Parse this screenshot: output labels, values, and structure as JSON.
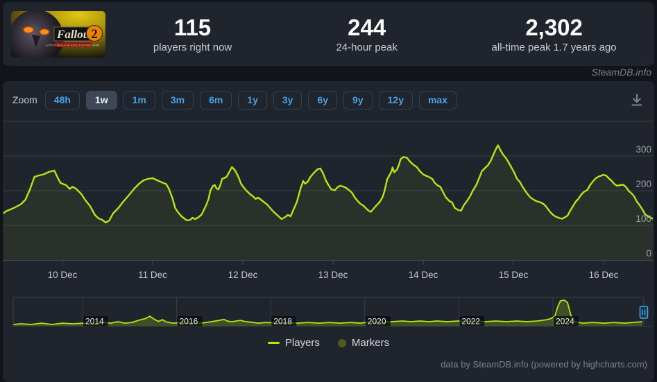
{
  "header": {
    "game_title": "Fallout 2",
    "stats": [
      {
        "value": "115",
        "label": "players right now"
      },
      {
        "value": "244",
        "label": "24-hour peak"
      },
      {
        "value": "2,302",
        "label": "all-time peak 1.7 years ago"
      }
    ]
  },
  "watermark": "SteamDB.info",
  "toolbar": {
    "zoom_label": "Zoom",
    "ranges": [
      "48h",
      "1w",
      "1m",
      "3m",
      "6m",
      "1y",
      "3y",
      "6y",
      "9y",
      "12y",
      "max"
    ],
    "selected": "1w",
    "download_icon": "download-chart-icon"
  },
  "legend": {
    "items": [
      {
        "label": "Players",
        "swatch": "line",
        "color": "#b2e816"
      },
      {
        "label": "Markers",
        "swatch": "circle",
        "color": "#4d5a26"
      }
    ]
  },
  "credits": "data by SteamDB.info (powered by highcharts.com)",
  "colors": {
    "accent_line": "#b2e816",
    "button_text": "#45a3e6",
    "page_background": "#121419",
    "card_background": "#20242c",
    "gridline": "#383e45",
    "navigator_handle": "#4da7e2"
  },
  "chart_data": {
    "type": "line",
    "title": "",
    "xlabel": "date",
    "ylabel": "players",
    "ylim": [
      0,
      400
    ],
    "grid": "horizontal",
    "legend_position": "bottom",
    "y_ticks": [
      300,
      200,
      100,
      0
    ],
    "x_ticks": {
      "labels": [
        "10 Dec",
        "11 Dec",
        "12 Dec",
        "13 Dec",
        "14 Dec",
        "15 Dec",
        "16 Dec"
      ],
      "days": [
        10,
        11,
        12,
        13,
        14,
        15,
        16
      ]
    },
    "series": [
      {
        "name": "Players",
        "color": "#b2e816",
        "x_unit": "day of December",
        "points": [
          [
            9.31,
            126
          ],
          [
            9.37,
            140
          ],
          [
            9.46,
            150
          ],
          [
            9.54,
            161
          ],
          [
            9.59,
            174
          ],
          [
            9.64,
            204
          ],
          [
            9.69,
            240
          ],
          [
            9.74,
            244
          ],
          [
            9.79,
            247
          ],
          [
            9.85,
            254
          ],
          [
            9.91,
            258
          ],
          [
            9.95,
            236
          ],
          [
            9.98,
            222
          ],
          [
            10.04,
            216
          ],
          [
            10.08,
            205
          ],
          [
            10.11,
            211
          ],
          [
            10.15,
            206
          ],
          [
            10.21,
            190
          ],
          [
            10.25,
            174
          ],
          [
            10.31,
            154
          ],
          [
            10.36,
            130
          ],
          [
            10.4,
            120
          ],
          [
            10.44,
            116
          ],
          [
            10.48,
            108
          ],
          [
            10.52,
            114
          ],
          [
            10.56,
            134
          ],
          [
            10.62,
            150
          ],
          [
            10.67,
            167
          ],
          [
            10.75,
            191
          ],
          [
            10.8,
            207
          ],
          [
            10.85,
            220
          ],
          [
            10.9,
            230
          ],
          [
            10.95,
            234
          ],
          [
            11.0,
            236
          ],
          [
            11.05,
            230
          ],
          [
            11.11,
            223
          ],
          [
            11.15,
            219
          ],
          [
            11.18,
            206
          ],
          [
            11.22,
            178
          ],
          [
            11.25,
            150
          ],
          [
            11.28,
            138
          ],
          [
            11.32,
            126
          ],
          [
            11.36,
            118
          ],
          [
            11.38,
            114
          ],
          [
            11.42,
            116
          ],
          [
            11.44,
            122
          ],
          [
            11.47,
            118
          ],
          [
            11.5,
            122
          ],
          [
            11.54,
            130
          ],
          [
            11.56,
            140
          ],
          [
            11.59,
            156
          ],
          [
            11.62,
            176
          ],
          [
            11.64,
            200
          ],
          [
            11.67,
            214
          ],
          [
            11.69,
            216
          ],
          [
            11.71,
            206
          ],
          [
            11.73,
            204
          ],
          [
            11.75,
            216
          ],
          [
            11.77,
            234
          ],
          [
            11.79,
            236
          ],
          [
            11.82,
            240
          ],
          [
            11.85,
            254
          ],
          [
            11.87,
            264
          ],
          [
            11.88,
            268
          ],
          [
            11.91,
            260
          ],
          [
            11.94,
            246
          ],
          [
            11.96,
            234
          ],
          [
            11.98,
            220
          ],
          [
            12.02,
            206
          ],
          [
            12.04,
            200
          ],
          [
            12.08,
            190
          ],
          [
            12.12,
            182
          ],
          [
            12.14,
            176
          ],
          [
            12.17,
            180
          ],
          [
            12.19,
            176
          ],
          [
            12.22,
            170
          ],
          [
            12.27,
            160
          ],
          [
            12.33,
            142
          ],
          [
            12.38,
            130
          ],
          [
            12.43,
            118
          ],
          [
            12.47,
            124
          ],
          [
            12.5,
            130
          ],
          [
            12.53,
            126
          ],
          [
            12.57,
            150
          ],
          [
            12.6,
            168
          ],
          [
            12.64,
            206
          ],
          [
            12.67,
            228
          ],
          [
            12.69,
            220
          ],
          [
            12.72,
            226
          ],
          [
            12.75,
            240
          ],
          [
            12.79,
            252
          ],
          [
            12.83,
            262
          ],
          [
            12.86,
            264
          ],
          [
            12.89,
            250
          ],
          [
            12.92,
            230
          ],
          [
            12.95,
            216
          ],
          [
            12.98,
            204
          ],
          [
            13.02,
            201
          ],
          [
            13.05,
            210
          ],
          [
            13.08,
            214
          ],
          [
            13.11,
            212
          ],
          [
            13.14,
            209
          ],
          [
            13.18,
            201
          ],
          [
            13.21,
            194
          ],
          [
            13.24,
            181
          ],
          [
            13.27,
            171
          ],
          [
            13.3,
            163
          ],
          [
            13.34,
            156
          ],
          [
            13.37,
            148
          ],
          [
            13.4,
            141
          ],
          [
            13.42,
            139
          ],
          [
            13.45,
            148
          ],
          [
            13.48,
            157
          ],
          [
            13.52,
            168
          ],
          [
            13.55,
            182
          ],
          [
            13.57,
            198
          ],
          [
            13.6,
            232
          ],
          [
            13.62,
            242
          ],
          [
            13.65,
            256
          ],
          [
            13.66,
            267
          ],
          [
            13.68,
            253
          ],
          [
            13.71,
            261
          ],
          [
            13.73,
            274
          ],
          [
            13.75,
            291
          ],
          [
            13.78,
            297
          ],
          [
            13.82,
            295
          ],
          [
            13.85,
            285
          ],
          [
            13.89,
            275
          ],
          [
            13.93,
            268
          ],
          [
            13.96,
            257
          ],
          [
            14.0,
            247
          ],
          [
            14.03,
            243
          ],
          [
            14.06,
            240
          ],
          [
            14.1,
            234
          ],
          [
            14.13,
            222
          ],
          [
            14.16,
            215
          ],
          [
            14.19,
            211
          ],
          [
            14.22,
            196
          ],
          [
            14.25,
            181
          ],
          [
            14.29,
            170
          ],
          [
            14.32,
            166
          ],
          [
            14.35,
            150
          ],
          [
            14.39,
            144
          ],
          [
            14.42,
            142
          ],
          [
            14.45,
            158
          ],
          [
            14.48,
            168
          ],
          [
            14.52,
            184
          ],
          [
            14.55,
            200
          ],
          [
            14.59,
            217
          ],
          [
            14.62,
            236
          ],
          [
            14.65,
            256
          ],
          [
            14.68,
            264
          ],
          [
            14.72,
            274
          ],
          [
            14.75,
            287
          ],
          [
            14.78,
            305
          ],
          [
            14.81,
            322
          ],
          [
            14.83,
            331
          ],
          [
            14.85,
            320
          ],
          [
            14.88,
            306
          ],
          [
            14.92,
            293
          ],
          [
            14.95,
            280
          ],
          [
            14.98,
            266
          ],
          [
            15.01,
            252
          ],
          [
            15.04,
            234
          ],
          [
            15.07,
            226
          ],
          [
            15.1,
            212
          ],
          [
            15.13,
            200
          ],
          [
            15.16,
            189
          ],
          [
            15.19,
            180
          ],
          [
            15.22,
            175
          ],
          [
            15.25,
            170
          ],
          [
            15.28,
            168
          ],
          [
            15.32,
            164
          ],
          [
            15.35,
            158
          ],
          [
            15.38,
            148
          ],
          [
            15.41,
            138
          ],
          [
            15.44,
            130
          ],
          [
            15.47,
            125
          ],
          [
            15.51,
            121
          ],
          [
            15.54,
            119
          ],
          [
            15.57,
            123
          ],
          [
            15.6,
            128
          ],
          [
            15.63,
            142
          ],
          [
            15.66,
            155
          ],
          [
            15.69,
            168
          ],
          [
            15.72,
            176
          ],
          [
            15.75,
            188
          ],
          [
            15.78,
            196
          ],
          [
            15.82,
            202
          ],
          [
            15.85,
            216
          ],
          [
            15.88,
            226
          ],
          [
            15.91,
            235
          ],
          [
            15.94,
            240
          ],
          [
            15.97,
            243
          ],
          [
            16.0,
            246
          ],
          [
            16.03,
            243
          ],
          [
            16.06,
            235
          ],
          [
            16.09,
            228
          ],
          [
            16.12,
            219
          ],
          [
            16.15,
            214
          ],
          [
            16.18,
            216
          ],
          [
            16.22,
            217
          ],
          [
            16.25,
            210
          ],
          [
            16.28,
            199
          ],
          [
            16.31,
            192
          ],
          [
            16.34,
            183
          ],
          [
            16.37,
            168
          ],
          [
            16.4,
            158
          ],
          [
            16.43,
            146
          ],
          [
            16.46,
            132
          ],
          [
            16.49,
            126
          ],
          [
            16.52,
            122
          ],
          [
            16.55,
            119
          ]
        ]
      }
    ],
    "navigator": {
      "x_ticks": [
        2014,
        2016,
        2018,
        2020,
        2022,
        2024
      ],
      "series_name": "Players (all time)",
      "x_unit": "year",
      "points": [
        [
          2012.53,
          180
        ],
        [
          2012.69,
          240
        ],
        [
          2012.91,
          180
        ],
        [
          2013.13,
          300
        ],
        [
          2013.35,
          180
        ],
        [
          2013.57,
          300
        ],
        [
          2013.79,
          240
        ],
        [
          2014.01,
          300
        ],
        [
          2014.23,
          180
        ],
        [
          2014.46,
          360
        ],
        [
          2014.6,
          300
        ],
        [
          2014.75,
          425
        ],
        [
          2014.9,
          300
        ],
        [
          2015.05,
          360
        ],
        [
          2015.19,
          545
        ],
        [
          2015.34,
          700
        ],
        [
          2015.43,
          900
        ],
        [
          2015.52,
          650
        ],
        [
          2015.61,
          450
        ],
        [
          2015.7,
          600
        ],
        [
          2015.78,
          400
        ],
        [
          2015.93,
          300
        ],
        [
          2016.11,
          360
        ],
        [
          2016.3,
          300
        ],
        [
          2016.52,
          300
        ],
        [
          2016.74,
          425
        ],
        [
          2016.85,
          500
        ],
        [
          2016.93,
          560
        ],
        [
          2017.01,
          620
        ],
        [
          2017.08,
          480
        ],
        [
          2017.17,
          420
        ],
        [
          2017.26,
          480
        ],
        [
          2017.36,
          540
        ],
        [
          2017.46,
          430
        ],
        [
          2017.58,
          380
        ],
        [
          2017.73,
          300
        ],
        [
          2017.92,
          360
        ],
        [
          2018.14,
          300
        ],
        [
          2018.36,
          360
        ],
        [
          2018.58,
          300
        ],
        [
          2018.8,
          360
        ],
        [
          2019.03,
          300
        ],
        [
          2019.25,
          360
        ],
        [
          2019.47,
          300
        ],
        [
          2019.69,
          360
        ],
        [
          2019.91,
          300
        ],
        [
          2020.13,
          425
        ],
        [
          2020.35,
          360
        ],
        [
          2020.57,
          425
        ],
        [
          2020.8,
          485
        ],
        [
          2020.98,
          425
        ],
        [
          2021.17,
          485
        ],
        [
          2021.36,
          425
        ],
        [
          2021.53,
          485
        ],
        [
          2021.76,
          425
        ],
        [
          2021.98,
          485
        ],
        [
          2022.16,
          425
        ],
        [
          2022.35,
          485
        ],
        [
          2022.57,
          425
        ],
        [
          2022.79,
          485
        ],
        [
          2023.01,
          425
        ],
        [
          2023.23,
          485
        ],
        [
          2023.45,
          425
        ],
        [
          2023.67,
          485
        ],
        [
          2023.87,
          600
        ],
        [
          2023.96,
          700
        ],
        [
          2024.04,
          900
        ],
        [
          2024.1,
          1700
        ],
        [
          2024.16,
          2250
        ],
        [
          2024.24,
          2302
        ],
        [
          2024.31,
          2100
        ],
        [
          2024.38,
          1000
        ],
        [
          2024.46,
          450
        ],
        [
          2024.55,
          360
        ],
        [
          2024.63,
          300
        ],
        [
          2024.86,
          360
        ],
        [
          2025.08,
          300
        ],
        [
          2025.3,
          360
        ],
        [
          2025.52,
          300
        ],
        [
          2025.7,
          360
        ],
        [
          2025.9,
          425
        ]
      ]
    }
  }
}
